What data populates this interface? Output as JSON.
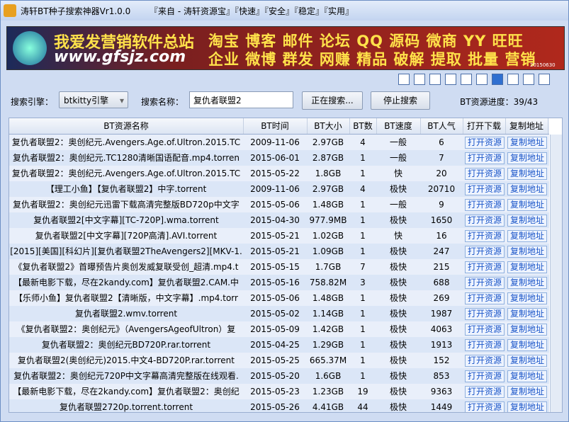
{
  "window": {
    "title": "涛轩BT种子搜索神器Vr1.0.0",
    "tagline": "『来自 - 涛轩资源宝』『快速』『安全』『稳定』『实用』"
  },
  "banner": {
    "line1": "我爱发营销软件总站",
    "url": "www.gfsjz.com",
    "words_top": "淘宝 博客 邮件 论坛 QQ 源码 微商 YY 旺旺",
    "words_bottom": "企业 微博 群发 网赚 精品 破解 提取 批量 营销",
    "date": "20150630"
  },
  "controls": {
    "engine_label": "搜索引擎：",
    "engine": "btkitty引擎",
    "name_label": "搜索名称：",
    "query": "复仇者联盟2",
    "search_button": "正在搜索...",
    "stop_button": "停止搜索",
    "progress": "BT资源进度：39/43"
  },
  "table": {
    "headers": [
      "BT资源名称",
      "BT时间",
      "BT大小",
      "BT数",
      "BT速度",
      "BT人气",
      "打开下载",
      "复制地址"
    ],
    "open_label": "打开资源",
    "copy_label": "复制地址",
    "rows": [
      [
        "复仇者联盟2：奥创纪元.Avengers.Age.of.Ultron.2015.TC",
        "2009-11-06",
        "2.97GB",
        4,
        "一般",
        6
      ],
      [
        "复仇者联盟2：奥创纪元.TC1280清晰国语配音.mp4.torren",
        "2015-06-01",
        "2.87GB",
        1,
        "一般",
        7
      ],
      [
        "复仇者联盟2：奥创纪元.Avengers.Age.of.Ultron.2015.TC",
        "2015-05-22",
        "1.8GB",
        1,
        "快",
        20
      ],
      [
        "【理工小鱼】【复仇者联盟2】中字.torrent",
        "2009-11-06",
        "2.97GB",
        4,
        "极快",
        20710
      ],
      [
        "复仇者联盟2：奥创纪元迅雷下载高清完整版BD720p中文字",
        "2015-05-06",
        "1.48GB",
        1,
        "一般",
        9
      ],
      [
        "复仇者联盟2[中文字幕][TC-720P].wma.torrent",
        "2015-04-30",
        "977.9MB",
        1,
        "极快",
        1650
      ],
      [
        "复仇者联盟2[中文字幕][720P高清].AVI.torrent",
        "2015-05-21",
        "1.02GB",
        1,
        "快",
        16
      ],
      [
        "[2015][美国][科幻片][复仇者联盟2TheAvengers2][MKV-1.",
        "2015-05-21",
        "1.09GB",
        1,
        "极快",
        247
      ],
      [
        "《复仇者联盟2》首曝预告片奥创发威复联受创_超清.mp4.t",
        "2015-05-15",
        "1.7GB",
        7,
        "极快",
        215
      ],
      [
        "【最新电影下载，尽在2kandy.com】复仇者联盟2.CAM.中",
        "2015-05-16",
        "758.82M",
        3,
        "极快",
        688
      ],
      [
        "【乐师小鱼】复仇者联盟2【清晰版，中文字幕】.mp4.torr",
        "2015-05-06",
        "1.48GB",
        1,
        "极快",
        269
      ],
      [
        "复仇者联盟2.wmv.torrent",
        "2015-05-02",
        "1.14GB",
        1,
        "极快",
        1987
      ],
      [
        "《复仇者联盟2：奥创纪元》（AvengersAgeofUltron）复",
        "2015-05-09",
        "1.42GB",
        1,
        "极快",
        4063
      ],
      [
        "复仇者联盟2：奥创纪元BD720P.rar.torrent",
        "2015-04-25",
        "1.29GB",
        1,
        "极快",
        1913
      ],
      [
        "复仇者联盟2(奥创纪元)2015.中文4-BD720P.rar.torrent",
        "2015-05-25",
        "665.37M",
        1,
        "极快",
        152
      ],
      [
        "复仇者联盟2：奥创纪元720P中文字幕高清完整版在线观看.",
        "2015-05-20",
        "1.6GB",
        1,
        "极快",
        853
      ],
      [
        "【最新电影下载，尽在2kandy.com】复仇者联盟2：奥创纪",
        "2015-05-23",
        "1.23GB",
        19,
        "极快",
        9363
      ],
      [
        "复仇者联盟2720p.torrent.torrent",
        "2015-05-26",
        "4.41GB",
        44,
        "极快",
        1449
      ]
    ]
  }
}
